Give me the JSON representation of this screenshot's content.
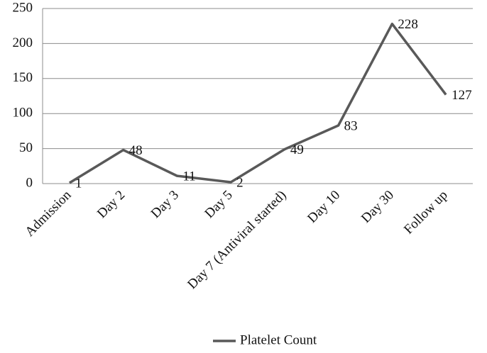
{
  "chart_data": {
    "type": "line",
    "categories": [
      "Admission",
      "Day 2",
      "Day 3",
      "Day 5",
      "Day 7 (Antiviral started)",
      "Day 10",
      "Day 30",
      "Follow up"
    ],
    "series": [
      {
        "name": "Platelet Count",
        "color": "#595959",
        "values": [
          1,
          48,
          11,
          2,
          49,
          83,
          228,
          127
        ]
      }
    ],
    "ylim": [
      0,
      250
    ],
    "yticks": [
      0,
      50,
      100,
      150,
      200,
      250
    ],
    "grid": true,
    "legend": "bottom"
  }
}
